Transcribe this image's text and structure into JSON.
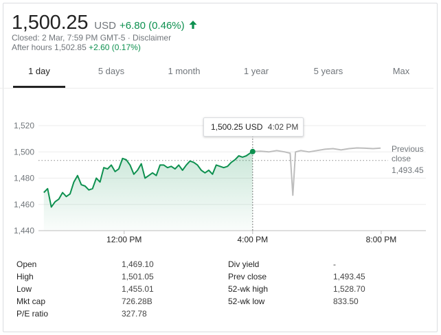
{
  "quote": {
    "price": "1,500.25",
    "currency": "USD",
    "change": "+6.80 (0.46%)",
    "closed_line": "Closed: 2 Mar, 7:59 PM GMT-5 · Disclaimer",
    "after_hours_label": "After hours 1,502.85",
    "after_hours_change": "+2.60 (0.17%)",
    "up_color": "#0d904f"
  },
  "tabs": [
    "1 day",
    "5 days",
    "1 month",
    "1 year",
    "5 years",
    "Max"
  ],
  "active_tab": "1 day",
  "tooltip": {
    "price": "1,500.25 USD",
    "time": "4:02 PM"
  },
  "previous_close": {
    "label_line1": "Previous",
    "label_line2": "close",
    "value": "1,493.45"
  },
  "chart_data": {
    "type": "line",
    "title": "",
    "xlabel": "",
    "ylabel": "",
    "ylim": [
      1440,
      1520
    ],
    "yticks": [
      "1,520",
      "1,500",
      "1,480",
      "1,460",
      "1,440"
    ],
    "ytick_values": [
      1520,
      1500,
      1480,
      1460,
      1440
    ],
    "xticks": [
      "12:00 PM",
      "4:00 PM",
      "8:00 PM"
    ],
    "xtick_values": [
      "12:00",
      "16:00",
      "20:00"
    ],
    "grid": true,
    "previous_close": 1493.45,
    "series": [
      {
        "session": "regular",
        "color": "#0d904f",
        "x": [
          "09:30",
          "09:37",
          "09:44",
          "09:51",
          "09:58",
          "10:05",
          "10:12",
          "10:19",
          "10:26",
          "10:33",
          "10:40",
          "10:47",
          "10:54",
          "11:01",
          "11:08",
          "11:15",
          "11:22",
          "11:29",
          "11:36",
          "11:43",
          "11:50",
          "11:57",
          "12:04",
          "12:11",
          "12:18",
          "12:25",
          "12:32",
          "12:39",
          "12:46",
          "12:53",
          "13:00",
          "13:07",
          "13:14",
          "13:21",
          "13:28",
          "13:35",
          "13:42",
          "13:49",
          "13:56",
          "14:03",
          "14:10",
          "14:17",
          "14:24",
          "14:31",
          "14:38",
          "14:45",
          "14:52",
          "14:59",
          "15:06",
          "15:13",
          "15:20",
          "15:27",
          "15:34",
          "15:41",
          "15:48",
          "15:55",
          "16:00"
        ],
        "y": [
          1469,
          1472,
          1458,
          1462,
          1464,
          1469,
          1466,
          1468,
          1477,
          1482,
          1475,
          1474,
          1471,
          1472,
          1480,
          1477,
          1488,
          1487,
          1490,
          1485,
          1487,
          1495,
          1494,
          1490,
          1483,
          1486,
          1491,
          1480,
          1482,
          1484,
          1482,
          1490,
          1490,
          1488,
          1489,
          1487,
          1490,
          1486,
          1490,
          1493,
          1492,
          1490,
          1486,
          1484,
          1486,
          1483,
          1490,
          1489,
          1488,
          1489,
          1492,
          1494,
          1497,
          1496,
          1497,
          1499,
          1500.25
        ]
      },
      {
        "session": "after-hours",
        "color": "#bdbdbd",
        "x": [
          "16:00",
          "16:15",
          "16:30",
          "16:45",
          "17:00",
          "17:10",
          "17:15",
          "17:20",
          "17:30",
          "17:45",
          "18:00",
          "18:15",
          "18:30",
          "18:45",
          "19:00",
          "19:15",
          "19:30",
          "19:45",
          "19:59"
        ],
        "y": [
          1500.25,
          1500.5,
          1500,
          1501,
          1500,
          1499,
          1467,
          1500,
          1501,
          1500,
          1501,
          1502,
          1502.5,
          1501.5,
          1502.5,
          1503,
          1502.8,
          1502.5,
          1502.85
        ]
      }
    ],
    "highlight": {
      "x": "16:00",
      "y": 1500.25
    }
  },
  "stats": {
    "left": [
      {
        "label": "Open",
        "value": "1,469.10"
      },
      {
        "label": "High",
        "value": "1,501.05"
      },
      {
        "label": "Low",
        "value": "1,455.01"
      },
      {
        "label": "Mkt cap",
        "value": "726.28B"
      },
      {
        "label": "P/E ratio",
        "value": "327.78"
      }
    ],
    "right": [
      {
        "label": "Div yield",
        "value": "-"
      },
      {
        "label": "Prev close",
        "value": "1,493.45"
      },
      {
        "label": "52-wk high",
        "value": "1,528.70"
      },
      {
        "label": "52-wk low",
        "value": "833.50"
      }
    ]
  }
}
